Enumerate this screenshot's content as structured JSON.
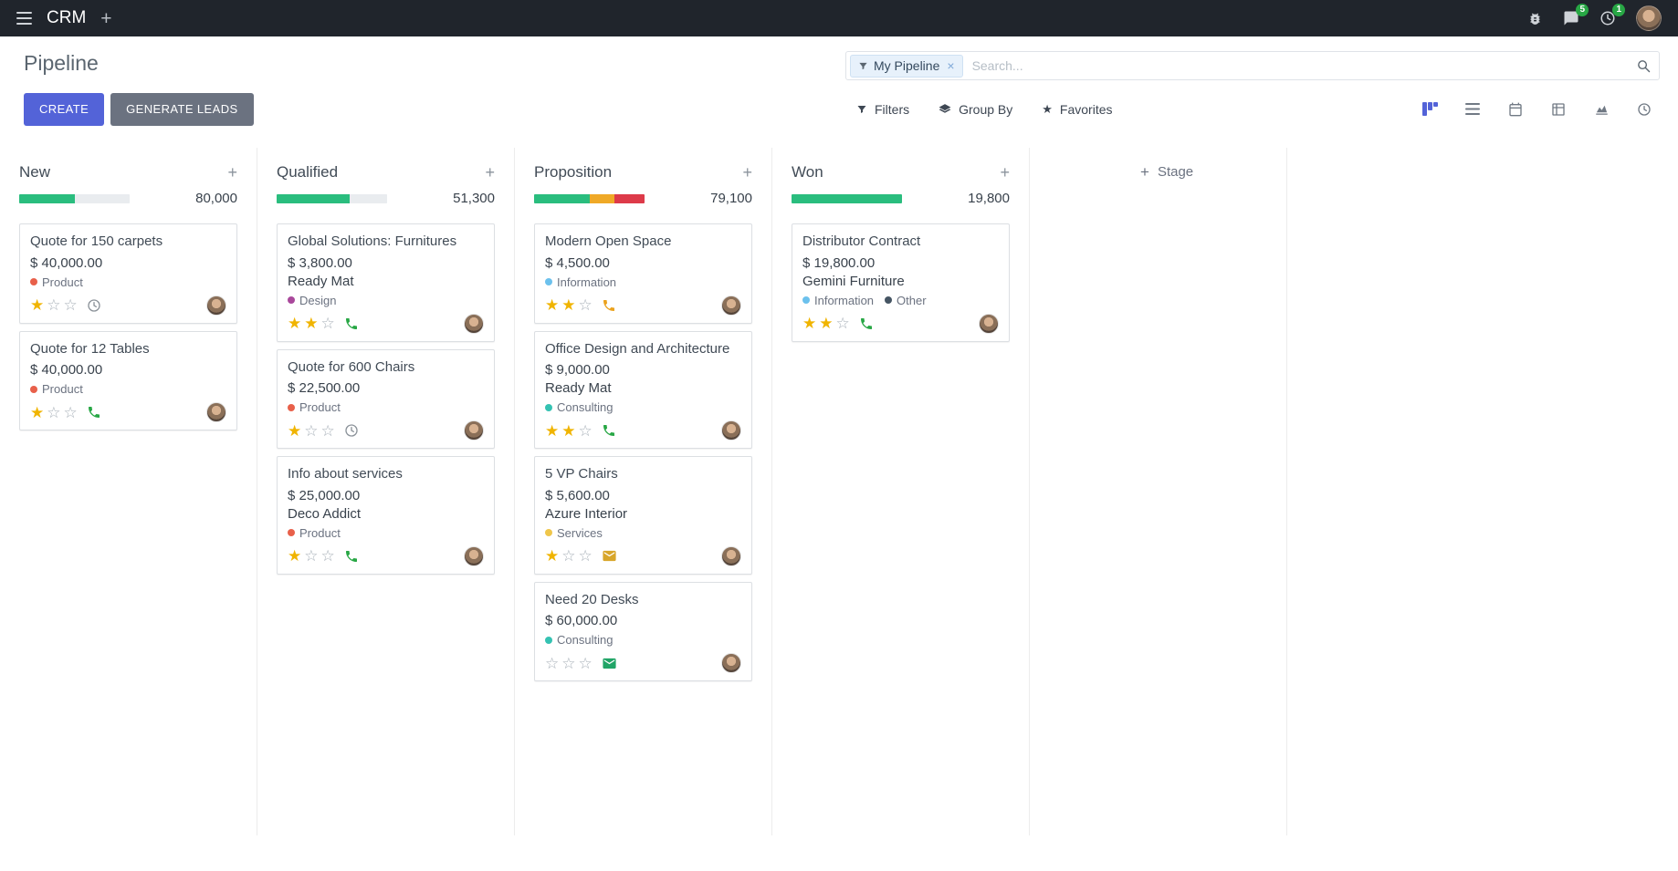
{
  "topbar": {
    "app_name": "CRM",
    "messages_badge": "5",
    "activities_badge": "1"
  },
  "control_panel": {
    "title": "Pipeline",
    "search": {
      "facet": "My Pipeline",
      "placeholder": "Search..."
    },
    "create_label": "CREATE",
    "generate_leads_label": "GENERATE LEADS",
    "filters_label": "Filters",
    "group_by_label": "Group By",
    "favorites_label": "Favorites"
  },
  "icons": {
    "plus": "+",
    "close": "×",
    "star_filled": "★",
    "star_empty": "☆"
  },
  "colors": {
    "accent": "#5363d8",
    "star_gold": "#f0b400",
    "progress_green": "#2abd7e",
    "progress_yellow": "#efa927",
    "progress_red": "#dd3a49",
    "progress_muted": "#e9ecef"
  },
  "board": {
    "add_stage_label": "Stage",
    "columns": [
      {
        "name": "New",
        "total": "80,000",
        "progress": [
          {
            "color": "green",
            "pct": 50
          },
          {
            "color": "muted",
            "pct": 50
          }
        ],
        "cards": [
          {
            "title": "Quote for 150 carpets",
            "amount": "$ 40,000.00",
            "tags": [
              {
                "label": "Product",
                "color": "#e8604a"
              }
            ],
            "stars": 1,
            "activity": {
              "icon": "clock",
              "color": "#8b9299"
            }
          },
          {
            "title": "Quote for 12 Tables",
            "amount": "$ 40,000.00",
            "tags": [
              {
                "label": "Product",
                "color": "#e8604a"
              }
            ],
            "stars": 1,
            "activity": {
              "icon": "phone",
              "color": "#28a745"
            }
          }
        ]
      },
      {
        "name": "Qualified",
        "total": "51,300",
        "progress": [
          {
            "color": "green",
            "pct": 66
          },
          {
            "color": "muted",
            "pct": 34
          }
        ],
        "cards": [
          {
            "title": "Global Solutions: Furnitures",
            "amount": "$ 3,800.00",
            "partner": "Ready Mat",
            "tags": [
              {
                "label": "Design",
                "color": "#a9489b"
              }
            ],
            "stars": 2,
            "activity": {
              "icon": "phone",
              "color": "#28a745"
            }
          },
          {
            "title": "Quote for 600 Chairs",
            "amount": "$ 22,500.00",
            "tags": [
              {
                "label": "Product",
                "color": "#e8604a"
              }
            ],
            "stars": 1,
            "activity": {
              "icon": "clock",
              "color": "#8b9299"
            }
          },
          {
            "title": "Info about services",
            "amount": "$ 25,000.00",
            "partner": "Deco Addict",
            "tags": [
              {
                "label": "Product",
                "color": "#e8604a"
              }
            ],
            "stars": 1,
            "activity": {
              "icon": "phone",
              "color": "#28a745"
            }
          }
        ]
      },
      {
        "name": "Proposition",
        "total": "79,100",
        "progress": [
          {
            "color": "green",
            "pct": 50
          },
          {
            "color": "yellow",
            "pct": 23
          },
          {
            "color": "red",
            "pct": 27
          }
        ],
        "cards": [
          {
            "title": "Modern Open Space",
            "amount": "$ 4,500.00",
            "tags": [
              {
                "label": "Information",
                "color": "#6cc1ed"
              }
            ],
            "stars": 2,
            "activity": {
              "icon": "phone",
              "color": "#eba21d"
            }
          },
          {
            "title": "Office Design and Architecture",
            "amount": "$ 9,000.00",
            "partner": "Ready Mat",
            "tags": [
              {
                "label": "Consulting",
                "color": "#35c2b2"
              }
            ],
            "stars": 2,
            "activity": {
              "icon": "phone",
              "color": "#28a745"
            }
          },
          {
            "title": "5 VP Chairs",
            "amount": "$ 5,600.00",
            "partner": "Azure Interior",
            "tags": [
              {
                "label": "Services",
                "color": "#efc64b"
              }
            ],
            "stars": 1,
            "activity": {
              "icon": "envelope",
              "color": "#d8a62a"
            }
          },
          {
            "title": "Need 20 Desks",
            "amount": "$ 60,000.00",
            "tags": [
              {
                "label": "Consulting",
                "color": "#35c2b2"
              }
            ],
            "stars": 0,
            "activity": {
              "icon": "envelope",
              "color": "#21a567"
            }
          }
        ]
      },
      {
        "name": "Won",
        "total": "19,800",
        "progress": [
          {
            "color": "green",
            "pct": 100
          }
        ],
        "cards": [
          {
            "title": "Distributor Contract",
            "amount": "$ 19,800.00",
            "partner": "Gemini Furniture",
            "tags": [
              {
                "label": "Information",
                "color": "#6cc1ed"
              },
              {
                "label": "Other",
                "color": "#455563"
              }
            ],
            "stars": 2,
            "activity": {
              "icon": "phone",
              "color": "#28a745"
            }
          }
        ]
      }
    ]
  }
}
